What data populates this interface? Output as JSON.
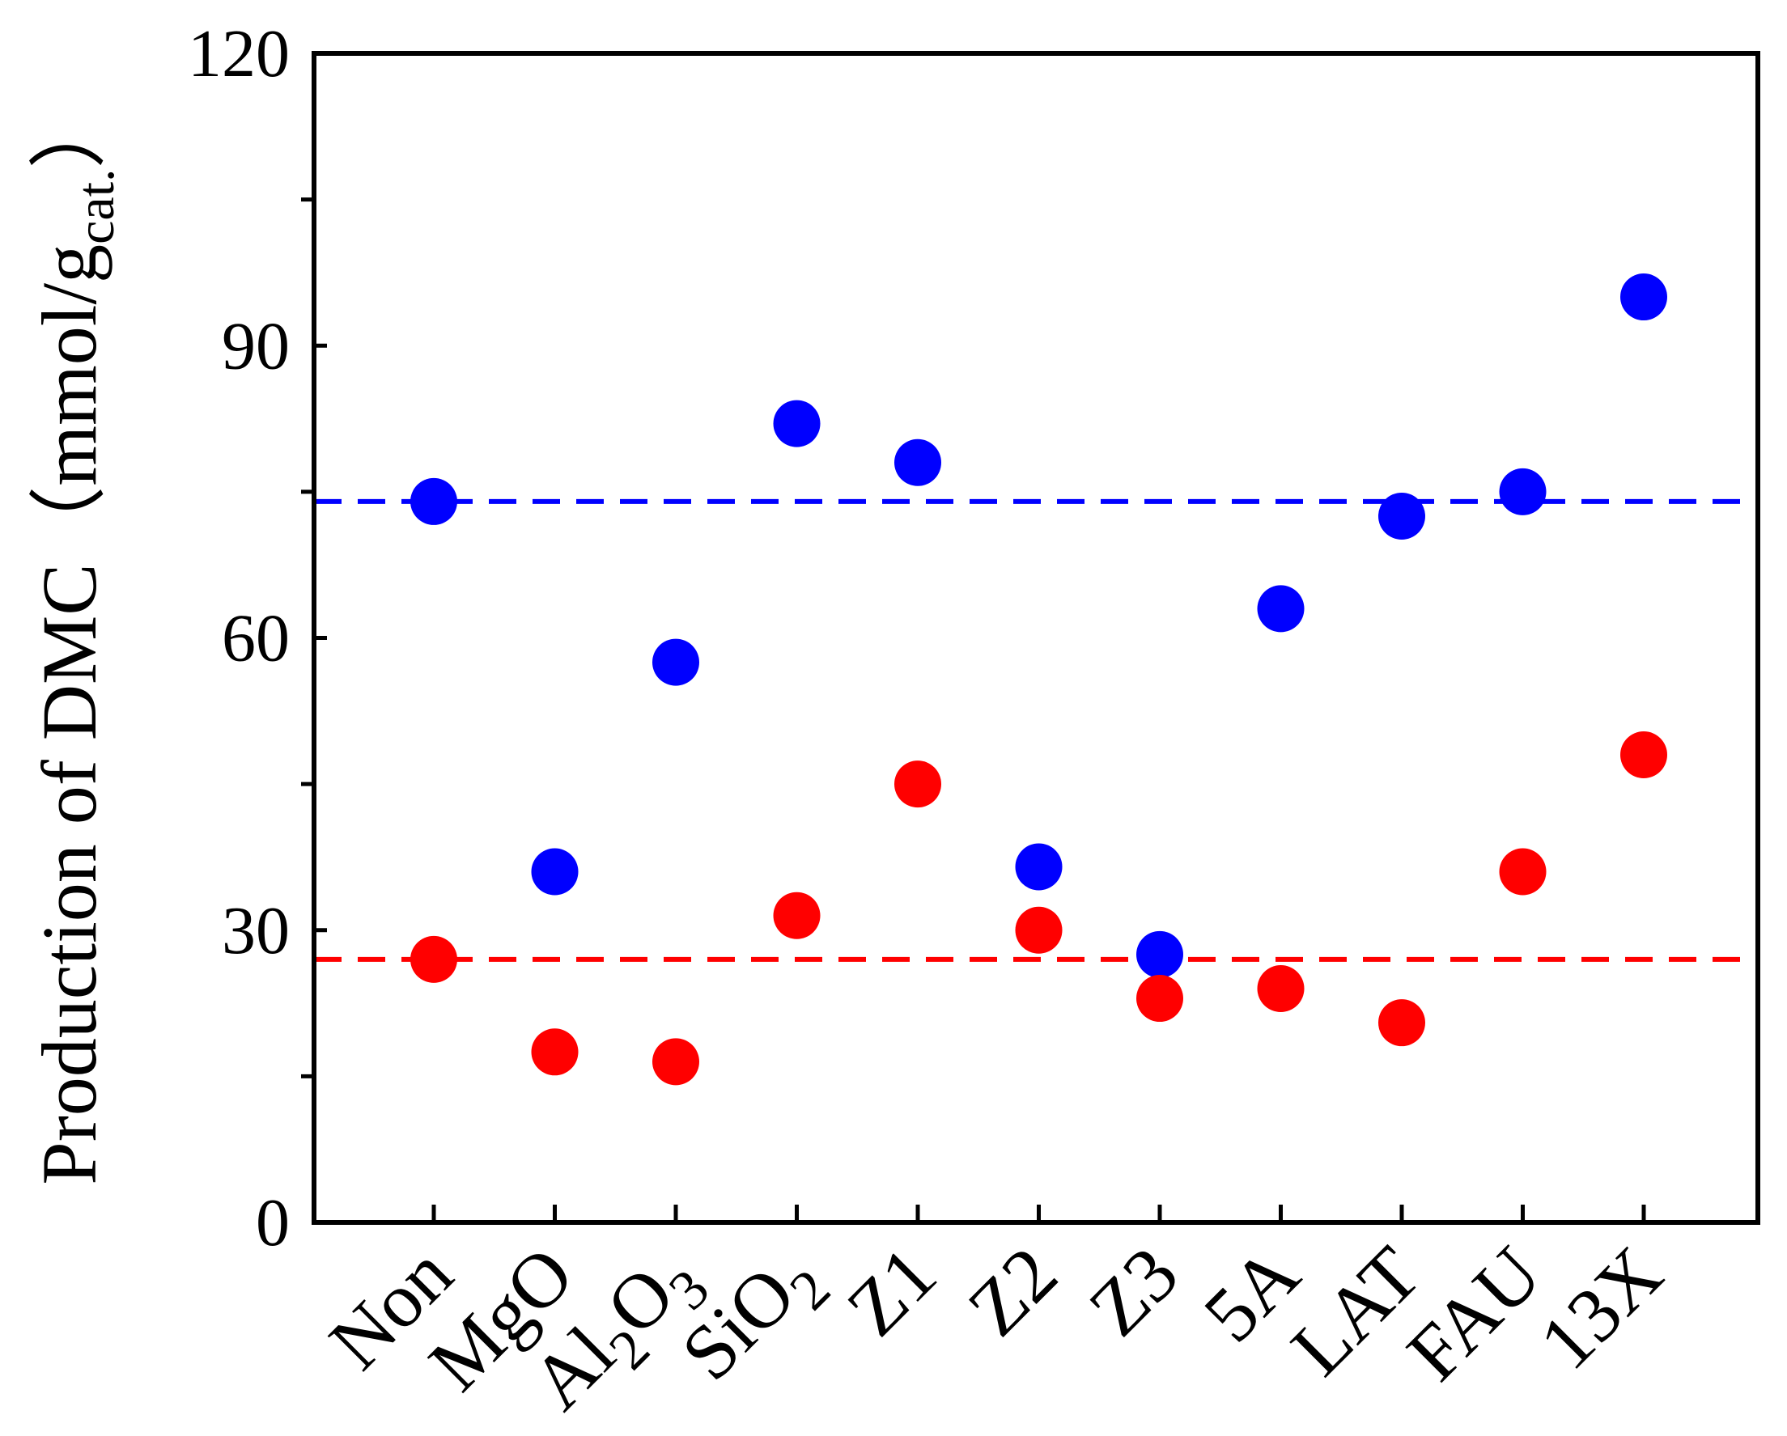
{
  "chart_data": {
    "type": "scatter",
    "title": "",
    "xlabel": "",
    "ylabel": {
      "main": "Production of DMC（mmol/g",
      "sub": "cat.",
      "close": "）"
    },
    "categories": [
      {
        "label": "Non"
      },
      {
        "label": "MgO"
      },
      {
        "label": "Al",
        "parts": [
          {
            "t": "Al"
          },
          {
            "t": "2",
            "sub": true
          },
          {
            "t": "O"
          },
          {
            "t": "3",
            "sub": true
          }
        ]
      },
      {
        "label": "SiO",
        "parts": [
          {
            "t": "SiO"
          },
          {
            "t": "2",
            "sub": true
          }
        ]
      },
      {
        "label": "Z1"
      },
      {
        "label": "Z2"
      },
      {
        "label": "Z3"
      },
      {
        "label": "5A"
      },
      {
        "label": "LAT"
      },
      {
        "label": "FAU"
      },
      {
        "label": "13X"
      }
    ],
    "ylim": [
      0,
      120
    ],
    "yticks": [
      0,
      30,
      60,
      90,
      120
    ],
    "yticks_minor": [
      15,
      45,
      75,
      105
    ],
    "grid": false,
    "legend": "none",
    "series": [
      {
        "color": "#0000ff",
        "values": [
          74,
          36,
          57.5,
          82,
          78,
          36.5,
          27.5,
          63,
          72.5,
          75,
          95
        ]
      },
      {
        "color": "#ff0000",
        "values": [
          27,
          17.5,
          16.5,
          31.5,
          45,
          30,
          23,
          24,
          20.5,
          36,
          48
        ]
      }
    ],
    "reference_lines": [
      {
        "y": 74,
        "color": "#0000ff",
        "style": "dashed"
      },
      {
        "y": 27,
        "color": "#ff0000",
        "style": "dashed"
      }
    ]
  }
}
